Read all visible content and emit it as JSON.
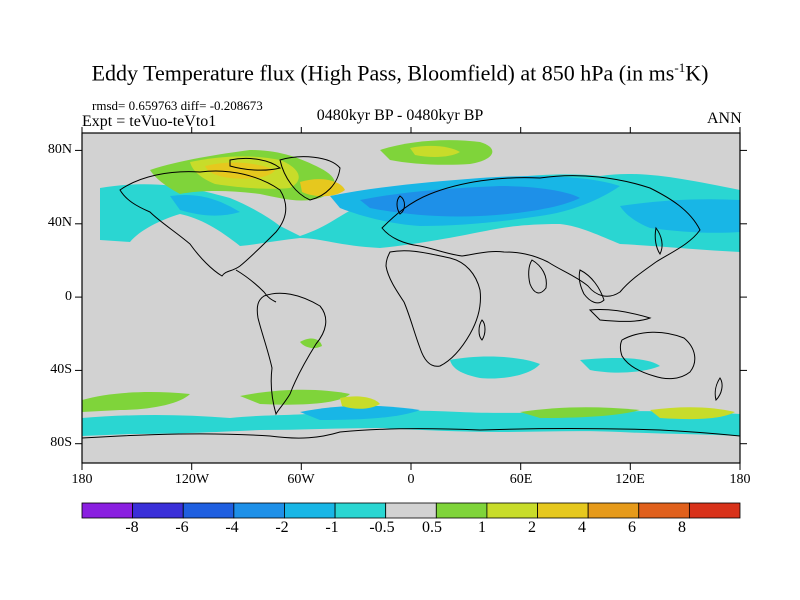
{
  "title_main": "Eddy Temperature flux (High Pass, Bloomfield) at 850 hPa (in ms",
  "title_sup": "-1",
  "title_tail": "K)",
  "stats": "rmsd= 0.659763 diff= -0.208673",
  "experiment": "Expt = teVuo-teVto1",
  "center_label": "0480kyr BP - 0480kyr BP",
  "season": "ANN",
  "lat_labels": [
    "80N",
    "40N",
    "0",
    "40S",
    "80S"
  ],
  "lon_labels": [
    "180",
    "120W",
    "60W",
    "0",
    "60E",
    "120E",
    "180"
  ],
  "colorbar": {
    "labels": [
      "-8",
      "-6",
      "-4",
      "-2",
      "-1",
      "-0.5",
      "0.5",
      "1",
      "2",
      "4",
      "6",
      "8"
    ],
    "colors": [
      "#8a1fe0",
      "#3a2fd8",
      "#1f5fe0",
      "#1e90e8",
      "#18b6e6",
      "#2ad6d2",
      "#d2d2d2",
      "#7fd43a",
      "#c8dc2a",
      "#e6c81e",
      "#e69a1a",
      "#e0601c",
      "#d8321a"
    ]
  },
  "colors": {
    "land": "#d2d2d2",
    "neg_light": "#2ad6d2",
    "neg_mid": "#18b6e6",
    "neg_strong": "#1e90e8",
    "pos_light": "#7fd43a",
    "pos_mid": "#c8dc2a",
    "pos_strong": "#e6c81e",
    "pos_stronger": "#e69a1a"
  }
}
